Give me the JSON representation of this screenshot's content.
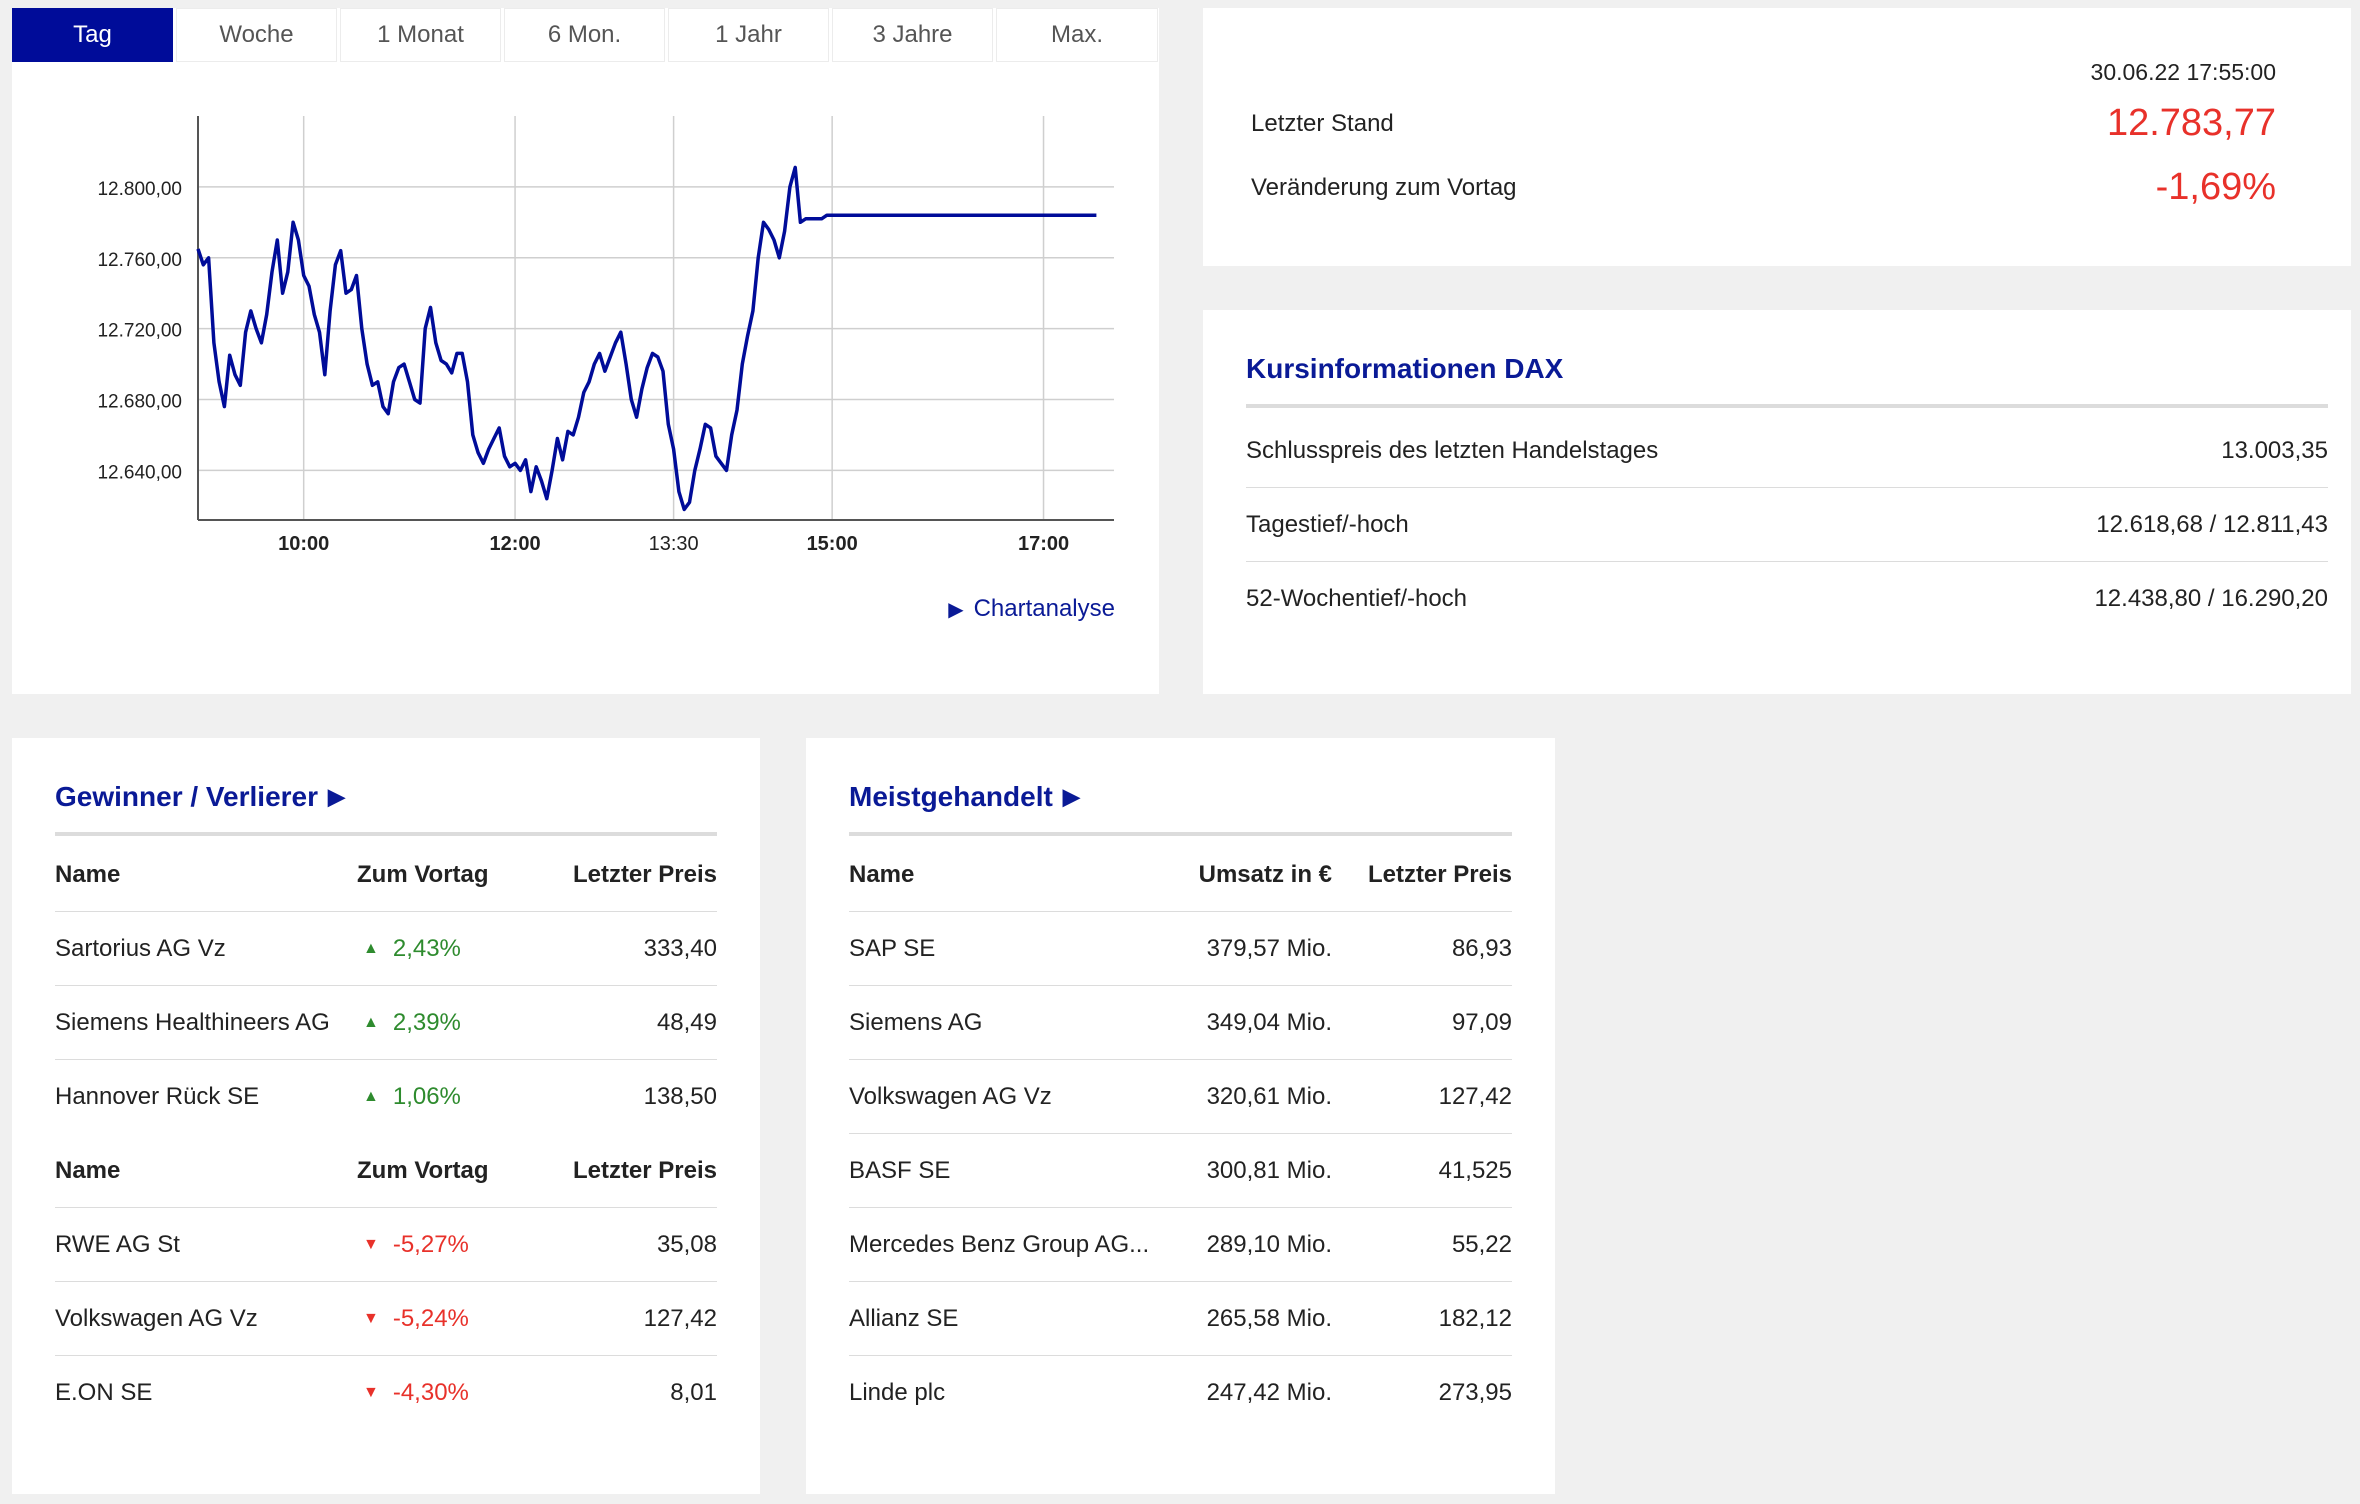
{
  "chart_panel": {
    "tabs": [
      {
        "label": "Tag",
        "active": true
      },
      {
        "label": "Woche",
        "active": false
      },
      {
        "label": "1 Monat",
        "active": false
      },
      {
        "label": "6 Mon.",
        "active": false
      },
      {
        "label": "1 Jahr",
        "active": false
      },
      {
        "label": "3 Jahre",
        "active": false
      },
      {
        "label": "Max.",
        "active": false
      }
    ],
    "link_label": "Chartanalyse",
    "link_icon": "triangle-right-icon"
  },
  "chart_data": {
    "type": "line",
    "title": "",
    "xlabel": "",
    "ylabel": "",
    "line_color": "#000c99",
    "grid": true,
    "ylim": [
      12612,
      12840
    ],
    "xlim": [
      "09:00",
      "17:40"
    ],
    "y_ticks": [
      "12.640,00",
      "12.680,00",
      "12.720,00",
      "12.760,00",
      "12.800,00"
    ],
    "y_tick_values": [
      12640,
      12680,
      12720,
      12760,
      12800
    ],
    "x_ticks": [
      "10:00",
      "12:00",
      "13:30",
      "15:00",
      "17:00"
    ],
    "x_tick_bold": [
      true,
      true,
      false,
      true,
      true
    ],
    "series": [
      {
        "x": [
          "09:00",
          "09:03",
          "09:06",
          "09:09",
          "09:12",
          "09:15",
          "09:18",
          "09:21",
          "09:24",
          "09:27",
          "09:30",
          "09:33",
          "09:36",
          "09:39",
          "09:42",
          "09:45",
          "09:48",
          "09:51",
          "09:54",
          "09:57",
          "10:00",
          "10:03",
          "10:06",
          "10:09",
          "10:12",
          "10:15",
          "10:18",
          "10:21",
          "10:24",
          "10:27",
          "10:30",
          "10:33",
          "10:36",
          "10:39",
          "10:42",
          "10:45",
          "10:48",
          "10:51",
          "10:54",
          "10:57",
          "11:00",
          "11:03",
          "11:06",
          "11:09",
          "11:12",
          "11:15",
          "11:18",
          "11:21",
          "11:24",
          "11:27",
          "11:30",
          "11:33",
          "11:36",
          "11:39",
          "11:42",
          "11:45",
          "11:48",
          "11:51",
          "11:54",
          "11:57",
          "12:00",
          "12:03",
          "12:06",
          "12:09",
          "12:12",
          "12:15",
          "12:18",
          "12:21",
          "12:24",
          "12:27",
          "12:30",
          "12:33",
          "12:36",
          "12:39",
          "12:42",
          "12:45",
          "12:48",
          "12:51",
          "12:54",
          "12:57",
          "13:00",
          "13:03",
          "13:06",
          "13:09",
          "13:12",
          "13:15",
          "13:18",
          "13:21",
          "13:24",
          "13:27",
          "13:30",
          "13:33",
          "13:36",
          "13:39",
          "13:42",
          "13:45",
          "13:48",
          "13:51",
          "13:54",
          "13:57",
          "14:00",
          "14:03",
          "14:06",
          "14:09",
          "14:12",
          "14:15",
          "14:18",
          "14:21",
          "14:24",
          "14:27",
          "14:30",
          "14:33",
          "14:36",
          "14:39",
          "14:42",
          "14:45",
          "14:48",
          "14:51",
          "14:54",
          "14:57",
          "15:00",
          "15:03",
          "15:06",
          "15:09",
          "15:12",
          "15:15",
          "15:18",
          "15:21",
          "15:24",
          "15:27",
          "15:30",
          "15:33",
          "15:36",
          "15:39",
          "15:42",
          "15:45",
          "15:48",
          "15:51",
          "15:54",
          "15:57",
          "16:00",
          "16:03",
          "16:06",
          "16:09",
          "16:12",
          "16:15",
          "16:18",
          "16:21",
          "16:24",
          "16:27",
          "16:30",
          "16:33",
          "16:36",
          "16:39",
          "16:42",
          "16:45",
          "16:48",
          "16:51",
          "16:54",
          "16:57",
          "17:00",
          "17:03",
          "17:06",
          "17:09",
          "17:12",
          "17:15",
          "17:18",
          "17:21",
          "17:24",
          "17:27",
          "17:30"
        ],
        "values": [
          12765,
          12756,
          12760,
          12712,
          12690,
          12676,
          12705,
          12694,
          12688,
          12718,
          12730,
          12720,
          12712,
          12728,
          12752,
          12770,
          12740,
          12752,
          12780,
          12770,
          12750,
          12744,
          12728,
          12718,
          12694,
          12730,
          12756,
          12764,
          12740,
          12742,
          12750,
          12720,
          12700,
          12688,
          12690,
          12676,
          12672,
          12690,
          12698,
          12700,
          12690,
          12680,
          12678,
          12720,
          12732,
          12712,
          12702,
          12700,
          12695,
          12706,
          12706,
          12690,
          12660,
          12650,
          12644,
          12652,
          12658,
          12664,
          12648,
          12642,
          12644,
          12640,
          12646,
          12628,
          12642,
          12634,
          12624,
          12640,
          12658,
          12646,
          12662,
          12660,
          12670,
          12684,
          12690,
          12700,
          12706,
          12696,
          12704,
          12712,
          12718,
          12700,
          12680,
          12670,
          12686,
          12698,
          12706,
          12704,
          12696,
          12666,
          12652,
          12628,
          12618,
          12622,
          12640,
          12652,
          12666,
          12664,
          12648,
          12644,
          12640,
          12660,
          12674,
          12700,
          12716,
          12730,
          12760,
          12780,
          12776,
          12770,
          12760,
          12775,
          12800,
          12811,
          12780,
          12782,
          12782,
          12782,
          12782,
          12784,
          12784,
          12784,
          12784,
          12784,
          12784,
          12784,
          12784,
          12784,
          12784,
          12784,
          12784,
          12784,
          12784,
          12784,
          12784,
          12784,
          12784,
          12784,
          12784,
          12784,
          12784,
          12784,
          12784,
          12784,
          12784,
          12784,
          12784,
          12784,
          12784,
          12784,
          12784,
          12784,
          12784,
          12784,
          12784,
          12784,
          12784,
          12784,
          12784,
          12784,
          12784,
          12784,
          12784,
          12784,
          12784,
          12784,
          12784,
          12784,
          12784,
          12784,
          12784
        ]
      }
    ]
  },
  "summary": {
    "timestamp": "30.06.22 17:55:00",
    "last_label": "Letzter Stand",
    "last_value": "12.783,77",
    "change_label": "Veränderung zum Vortag",
    "change_value": "-1,69%",
    "negative_color": "#e8312a"
  },
  "info": {
    "title": "Kursinformationen DAX",
    "rows": [
      {
        "label": "Schlusspreis des letzten Handelstages",
        "value": "13.003,35"
      },
      {
        "label": "Tagestief/-hoch",
        "value": "12.618,68 / 12.811,43"
      },
      {
        "label": "52-Wochentief/-hoch",
        "value": "12.438,80 / 16.290,20"
      }
    ]
  },
  "gainers": {
    "title": "Gewinner / Verlierer",
    "title_icon": "triangle-right-icon",
    "header": {
      "name": "Name",
      "change": "Zum Vortag",
      "price": "Letzter Preis"
    },
    "winners": [
      {
        "name": "Sartorius AG Vz",
        "change": "2,43%",
        "price": "333,40",
        "dir": "up"
      },
      {
        "name": "Siemens Healthineers AG",
        "change": "2,39%",
        "price": "48,49",
        "dir": "up"
      },
      {
        "name": "Hannover Rück SE",
        "change": "1,06%",
        "price": "138,50",
        "dir": "up"
      }
    ],
    "losers": [
      {
        "name": "RWE AG St",
        "change": "-5,27%",
        "price": "35,08",
        "dir": "down"
      },
      {
        "name": "Volkswagen AG Vz",
        "change": "-5,24%",
        "price": "127,42",
        "dir": "down"
      },
      {
        "name": "E.ON SE",
        "change": "-4,30%",
        "price": "8,01",
        "dir": "down"
      }
    ],
    "up_color": "#2e8b2e",
    "down_color": "#e8312a"
  },
  "traded": {
    "title": "Meistgehandelt",
    "title_icon": "triangle-right-icon",
    "header": {
      "name": "Name",
      "volume": "Umsatz in €",
      "price": "Letzter Preis"
    },
    "rows": [
      {
        "name": "SAP SE",
        "volume": "379,57 Mio.",
        "price": "86,93"
      },
      {
        "name": "Siemens AG",
        "volume": "349,04 Mio.",
        "price": "97,09"
      },
      {
        "name": "Volkswagen AG Vz",
        "volume": "320,61 Mio.",
        "price": "127,42"
      },
      {
        "name": "BASF SE",
        "volume": "300,81 Mio.",
        "price": "41,525"
      },
      {
        "name": "Mercedes Benz Group AG...",
        "volume": "289,10 Mio.",
        "price": "55,22"
      },
      {
        "name": "Allianz SE",
        "volume": "265,58 Mio.",
        "price": "182,12"
      },
      {
        "name": "Linde plc",
        "volume": "247,42 Mio.",
        "price": "273,95"
      }
    ]
  }
}
